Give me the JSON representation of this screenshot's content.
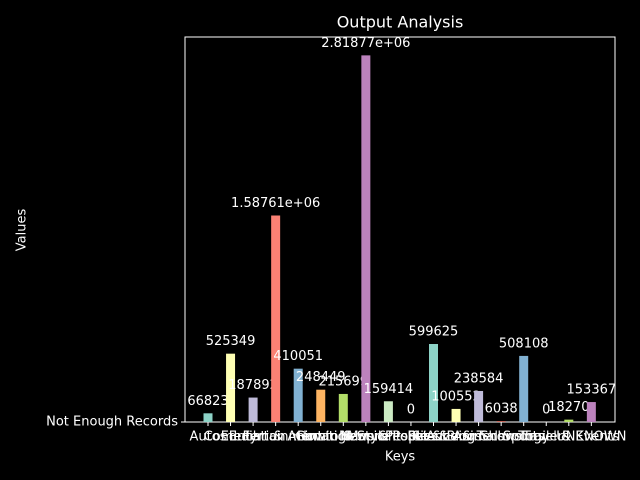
{
  "chart_data": {
    "type": "bar",
    "title": "Output Analysis",
    "x_label": "Keys",
    "y_label": "Values",
    "categories": [
      "Autos",
      "Comedy",
      "Education",
      "Entertainment",
      "Film & Animation",
      "Gaming",
      "Howto & Style",
      "Music",
      "News & Politics",
      "Nonprofits & Activism",
      "People & Blogs",
      "Pets & Animals",
      "Science & Technology",
      "Shows",
      "Sports",
      "Trailers",
      "Travel & Events",
      "UNKNOWN"
    ],
    "values": [
      66823,
      525349,
      187892,
      1587610,
      410051,
      248449,
      215699,
      2818770,
      159414,
      0,
      599625,
      100552,
      238584,
      6038,
      508108,
      0,
      18270,
      153367
    ],
    "value_labels": [
      "66823",
      "525349",
      "187892",
      "1.58761e+06",
      "410051",
      "248449",
      "215699",
      "2.81877e+06",
      "159414",
      "0",
      "599625",
      "100552",
      "238584",
      "6038",
      "508108",
      "0",
      "18270",
      "153367"
    ],
    "colors": [
      "#8dd3c7",
      "#feffb3",
      "#bfbbd9",
      "#fa8174",
      "#81b1d2",
      "#fdb462",
      "#b3de69",
      "#bc82bd",
      "#ccebc4",
      "#ffed6f",
      "#8dd3c7",
      "#feffb3",
      "#bfbbd9",
      "#fa8174",
      "#81b1d2",
      "#fdb462",
      "#b3de69",
      "#bc82bd"
    ],
    "ylim": [
      0,
      2960000
    ],
    "yticks": [
      {
        "value": 0,
        "label": "Not Enough Records"
      }
    ]
  }
}
